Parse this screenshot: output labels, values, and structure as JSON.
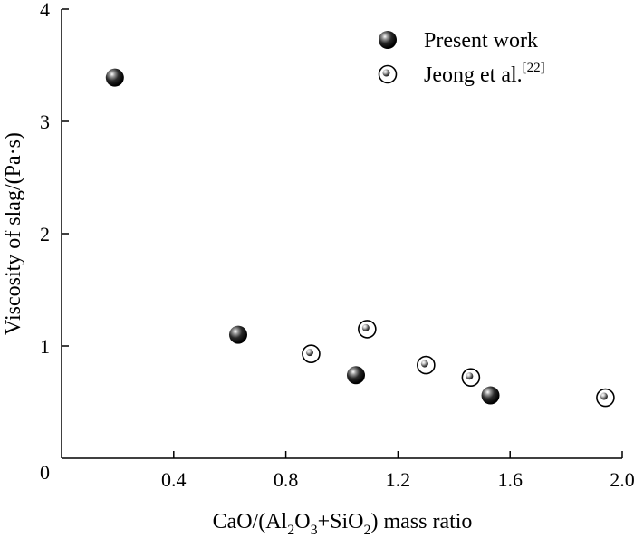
{
  "chart_data": {
    "type": "scatter",
    "xlabel": {
      "before": "CaO/(Al",
      "sub1": "2",
      "mid1": "O",
      "sub2": "3",
      "mid2": "+SiO",
      "sub3": "2",
      "after": ") mass ratio"
    },
    "ylabel": "Viscosity of slag/(Pa·s)",
    "xlim": [
      0.0,
      2.0
    ],
    "ylim": [
      0,
      4
    ],
    "x_ticks": [
      0.4,
      0.8,
      1.2,
      1.6,
      2.0
    ],
    "x_tick_labels": [
      "0.4",
      "0.8",
      "1.2",
      "1.6",
      "2.0"
    ],
    "y_ticks": [
      0,
      1,
      2,
      3,
      4
    ],
    "y_tick_labels": [
      "0",
      "1",
      "2",
      "3",
      "4"
    ],
    "legend_position": "top-right",
    "series": [
      {
        "name": "Present work",
        "style": "filled",
        "color": "#111111",
        "points": [
          {
            "x": 0.19,
            "y": 3.39
          },
          {
            "x": 0.63,
            "y": 1.1
          },
          {
            "x": 1.05,
            "y": 0.74
          },
          {
            "x": 1.53,
            "y": 0.56
          }
        ]
      },
      {
        "name": "Jeong et al.",
        "name_sup": "[22]",
        "style": "open",
        "color": "#111111",
        "points": [
          {
            "x": 0.89,
            "y": 0.93
          },
          {
            "x": 1.09,
            "y": 1.15
          },
          {
            "x": 1.3,
            "y": 0.83
          },
          {
            "x": 1.46,
            "y": 0.72
          },
          {
            "x": 1.94,
            "y": 0.54
          }
        ]
      }
    ]
  }
}
